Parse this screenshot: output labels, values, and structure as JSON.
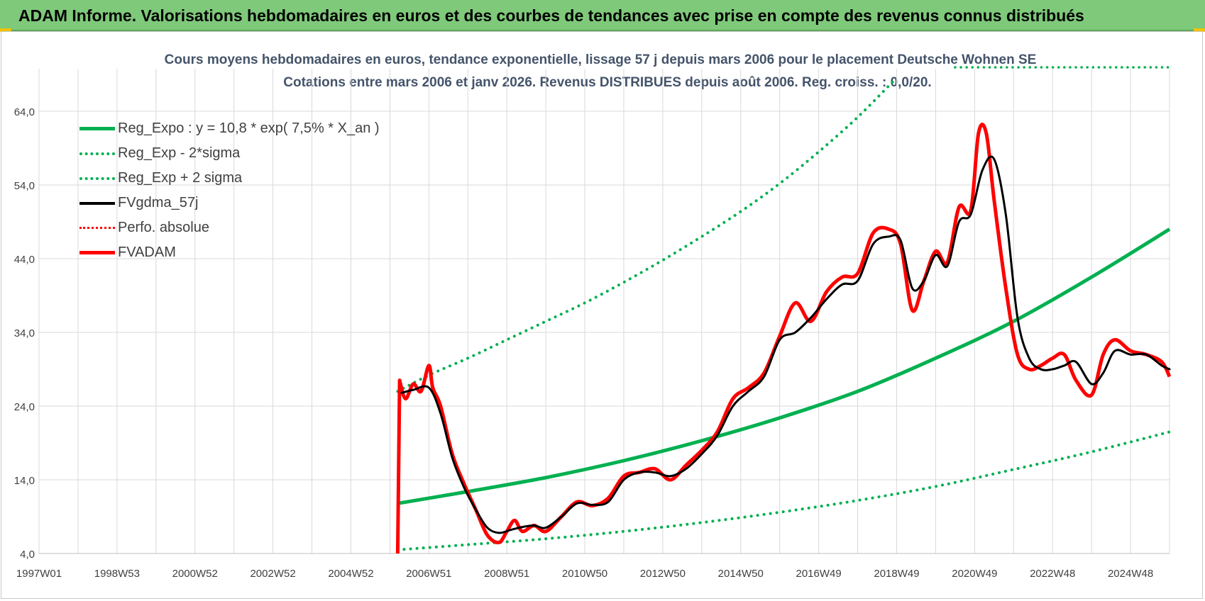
{
  "banner": {
    "title": "ADAM Informe. Valorisations hebdomadaires en euros et des courbes de tendances avec prise en compte des revenus connus distribués"
  },
  "colors": {
    "banner_bg": "#7fc97a",
    "reg_expo": "#00b050",
    "fvgdma": "#000000",
    "fvadam": "#ff0000",
    "perfo": "#ff0000",
    "grid": "#d9d9d9",
    "title_text": "#44546a"
  },
  "chart_data": {
    "type": "line",
    "title": "Cours moyens hebdomadaires en euros, tendance exponentielle, lissage 57 j depuis mars 2006 pour le placement Deutsche Wohnen SE",
    "subtitle": "Cotations entre mars 2006 et janv 2026. Revenus DISTRIBUES depuis août 2006. Reg. croiss. : 0,0/20.",
    "xlabel": "",
    "ylabel": "",
    "ylim": [
      4,
      64
    ],
    "y_ticks": [
      "4,0",
      "14,0",
      "24,0",
      "34,0",
      "44,0",
      "54,0",
      "64,0"
    ],
    "y_tick_values": [
      4,
      14,
      24,
      34,
      44,
      54,
      64
    ],
    "xlim": [
      1997.0,
      2026.0
    ],
    "x_ticks": [
      "1997W01",
      "1998W53",
      "2000W52",
      "2002W52",
      "2004W52",
      "2006W51",
      "2008W51",
      "2010W50",
      "2012W50",
      "2014W50",
      "2016W49",
      "2018W49",
      "2020W49",
      "2022W48",
      "2024W48"
    ],
    "x_tick_years": [
      1997.0,
      1999.0,
      2001.0,
      2003.0,
      2005.0,
      2007.0,
      2009.0,
      2011.0,
      2013.0,
      2015.0,
      2017.0,
      2019.0,
      2021.0,
      2023.0,
      2025.0
    ],
    "grid": true,
    "legend_position": "top-left",
    "series": [
      {
        "name": "Reg_Expo : y = 10,8 * exp( 7,5% *  X_an )",
        "style": "solid-thick",
        "color": "#00b050",
        "x": [
          2006.2,
          2008.0,
          2010.0,
          2012.0,
          2014.0,
          2016.0,
          2018.0,
          2020.0,
          2022.0,
          2024.0,
          2026.0
        ],
        "values": [
          10.8,
          12.4,
          14.3,
          16.6,
          19.3,
          22.4,
          26.0,
          30.5,
          35.5,
          41.5,
          48.0
        ]
      },
      {
        "name": "Reg_Exp - 2*sigma",
        "style": "dotted",
        "color": "#00b050",
        "x": [
          2006.2,
          2008.0,
          2010.0,
          2012.0,
          2014.0,
          2016.0,
          2018.0,
          2020.0,
          2022.0,
          2024.0,
          2026.0
        ],
        "values": [
          4.5,
          5.2,
          6.0,
          7.0,
          8.2,
          9.6,
          11.2,
          13.1,
          15.4,
          17.8,
          20.5
        ]
      },
      {
        "name": "Reg_Exp + 2 sigma",
        "style": "dotted",
        "color": "#00b050",
        "x": [
          2006.2,
          2007.0,
          2008.0,
          2009.0,
          2010.0,
          2011.0,
          2012.0,
          2013.0,
          2014.0,
          2015.0,
          2016.0,
          2017.0,
          2018.0,
          2018.9
        ],
        "values": [
          26.0,
          28.2,
          30.5,
          33.0,
          35.5,
          38.0,
          40.8,
          43.8,
          47.0,
          50.4,
          54.2,
          58.5,
          63.2,
          68.0
        ]
      },
      {
        "name": "FVgdma_57j",
        "style": "solid",
        "color": "#000000",
        "x": [
          2006.3,
          2006.6,
          2007.0,
          2007.3,
          2007.6,
          2007.9,
          2008.2,
          2008.5,
          2008.8,
          2009.1,
          2009.4,
          2009.7,
          2010.0,
          2010.4,
          2010.8,
          2011.2,
          2011.6,
          2012.0,
          2012.4,
          2012.8,
          2013.2,
          2013.6,
          2014.0,
          2014.4,
          2014.8,
          2015.2,
          2015.6,
          2016.0,
          2016.4,
          2016.8,
          2017.2,
          2017.6,
          2018.0,
          2018.4,
          2018.8,
          2019.1,
          2019.4,
          2019.7,
          2020.0,
          2020.3,
          2020.6,
          2020.9,
          2021.2,
          2021.5,
          2021.8,
          2022.1,
          2022.4,
          2022.7,
          2023.0,
          2023.3,
          2023.6,
          2024.0,
          2024.3,
          2024.6,
          2025.0,
          2025.4,
          2025.8,
          2026.0
        ],
        "values": [
          25.8,
          26.2,
          26.5,
          23.0,
          17.0,
          13.0,
          10.0,
          7.5,
          6.8,
          7.2,
          7.6,
          7.8,
          7.5,
          9.0,
          10.8,
          10.6,
          11.0,
          14.0,
          15.0,
          15.0,
          14.5,
          15.5,
          17.5,
          20.0,
          24.0,
          26.0,
          28.0,
          33.0,
          34.0,
          36.0,
          38.5,
          40.5,
          41.0,
          46.0,
          47.0,
          46.5,
          40.0,
          41.0,
          44.5,
          43.0,
          49.0,
          50.0,
          56.0,
          57.5,
          50.0,
          36.0,
          30.5,
          29.0,
          29.0,
          29.5,
          30.0,
          27.0,
          28.5,
          31.5,
          31.0,
          31.0,
          29.5,
          29.0
        ]
      },
      {
        "name": "Perfo. absolue",
        "style": "dotted",
        "color": "#ff0000",
        "x": [],
        "values": []
      },
      {
        "name": "FVADAM",
        "style": "solid-thick",
        "color": "#ff0000",
        "x": [
          2006.2,
          2006.25,
          2006.4,
          2006.6,
          2006.8,
          2007.0,
          2007.1,
          2007.3,
          2007.6,
          2007.9,
          2008.2,
          2008.5,
          2008.8,
          2009.0,
          2009.2,
          2009.4,
          2009.7,
          2010.0,
          2010.4,
          2010.8,
          2011.2,
          2011.6,
          2012.0,
          2012.4,
          2012.8,
          2013.2,
          2013.6,
          2014.0,
          2014.4,
          2014.8,
          2015.2,
          2015.6,
          2016.0,
          2016.4,
          2016.8,
          2017.2,
          2017.6,
          2018.0,
          2018.4,
          2018.8,
          2019.1,
          2019.4,
          2019.7,
          2020.0,
          2020.3,
          2020.6,
          2020.9,
          2021.1,
          2021.3,
          2021.5,
          2021.8,
          2022.1,
          2022.4,
          2022.7,
          2023.0,
          2023.3,
          2023.6,
          2024.0,
          2024.3,
          2024.6,
          2025.0,
          2025.4,
          2025.8,
          2026.0
        ],
        "values": [
          4.0,
          27.5,
          25.0,
          27.0,
          26.0,
          29.5,
          26.5,
          24.0,
          17.5,
          13.5,
          10.0,
          6.5,
          5.5,
          7.0,
          8.5,
          7.0,
          7.8,
          7.0,
          9.0,
          11.0,
          10.5,
          11.5,
          14.5,
          15.0,
          15.5,
          14.0,
          16.0,
          18.0,
          20.5,
          25.0,
          26.5,
          28.5,
          33.5,
          38.0,
          35.5,
          39.5,
          41.5,
          42.0,
          47.5,
          48.0,
          46.0,
          37.0,
          41.0,
          45.0,
          43.5,
          51.0,
          50.5,
          61.0,
          61.0,
          52.0,
          40.0,
          31.0,
          29.0,
          29.5,
          30.5,
          31.0,
          27.5,
          25.5,
          31.0,
          33.0,
          31.5,
          31.0,
          30.0,
          28.0
        ]
      }
    ]
  }
}
